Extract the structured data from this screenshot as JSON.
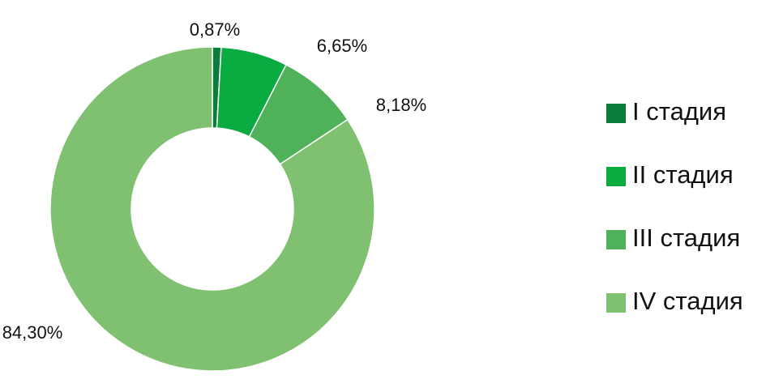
{
  "chart_data": {
    "type": "donut",
    "categories": [
      "I стадия",
      "II стадия",
      "III стадия",
      "IV стадия"
    ],
    "values": [
      0.87,
      6.65,
      8.18,
      84.3
    ],
    "value_labels": [
      "0,87%",
      "6,65%",
      "8,18%",
      "84,30%"
    ],
    "colors": [
      "#0a7d3b",
      "#0aab40",
      "#4fb25a",
      "#80c071"
    ],
    "legend": "right"
  }
}
